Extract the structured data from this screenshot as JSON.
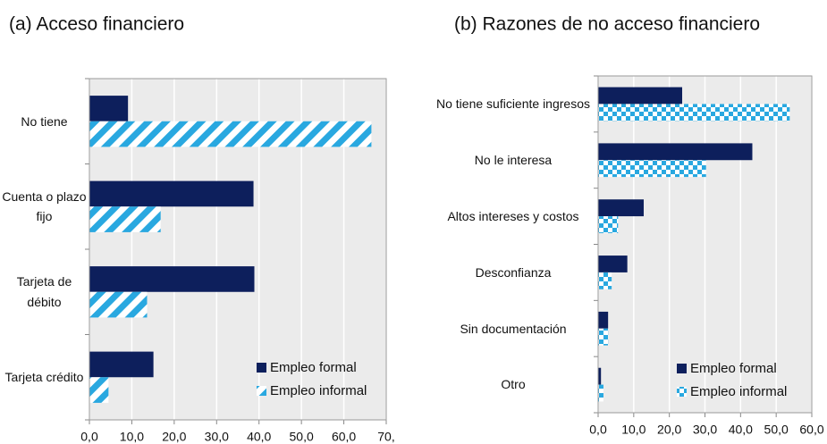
{
  "chart_data": [
    {
      "type": "bar",
      "orientation": "horizontal",
      "title": "(a) Acceso financiero",
      "categories": [
        "No tiene",
        "Cuenta o plazo fijo",
        "Tarjeta de débito",
        "Tarjeta crédito"
      ],
      "series": [
        {
          "name": "Empleo formal",
          "color": "#0d1f5c",
          "pattern": "solid",
          "values": [
            9.1,
            38.7,
            38.9,
            15.1
          ]
        },
        {
          "name": "Empleo informal",
          "color": "#29a8e0",
          "pattern": "stripes",
          "values": [
            66.5,
            16.8,
            13.6,
            4.5
          ]
        }
      ],
      "xlim": [
        0,
        70
      ],
      "xticks": [
        {
          "value": 0,
          "label": "0,0"
        },
        {
          "value": 10,
          "label": "10,0"
        },
        {
          "value": 20,
          "label": "20,0"
        },
        {
          "value": 30,
          "label": "30,0"
        },
        {
          "value": 40,
          "label": "40,0"
        },
        {
          "value": 50,
          "label": "50,0"
        },
        {
          "value": 60,
          "label": "60,0"
        },
        {
          "value": 70,
          "label": "70,"
        }
      ],
      "grid": true,
      "legend": "lower right"
    },
    {
      "type": "bar",
      "orientation": "horizontal",
      "title": "(b) Razones de no acceso financiero",
      "categories": [
        "No tiene suficiente ingresos",
        "No le interesa",
        "Altos intereses y costos",
        "Desconfianza",
        "Sin documentación",
        "Otro"
      ],
      "series": [
        {
          "name": "Empleo formal",
          "color": "#0d1f5c",
          "pattern": "solid",
          "values": [
            23.6,
            43.3,
            12.8,
            8.2,
            2.8,
            0.8
          ]
        },
        {
          "name": "Empleo informal",
          "color": "#29a8e0",
          "pattern": "checker",
          "values": [
            53.8,
            30.3,
            5.6,
            3.8,
            2.8,
            1.5
          ]
        }
      ],
      "xlim": [
        0,
        60
      ],
      "xticks": [
        {
          "value": 0,
          "label": "0,0"
        },
        {
          "value": 10,
          "label": "10,0"
        },
        {
          "value": 20,
          "label": "20,0"
        },
        {
          "value": 30,
          "label": "30,0"
        },
        {
          "value": 40,
          "label": "40,0"
        },
        {
          "value": 50,
          "label": "50,0"
        },
        {
          "value": 60,
          "label": "60,0"
        }
      ],
      "grid": true,
      "legend": "lower right"
    }
  ]
}
